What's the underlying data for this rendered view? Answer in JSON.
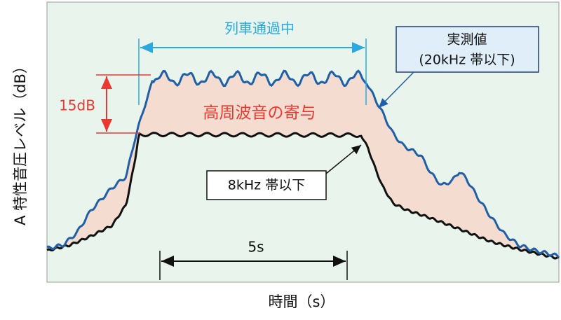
{
  "axes": {
    "y_label": "A 特性音圧レベル（dB）",
    "x_label": "時間（s）"
  },
  "annotations": {
    "passing": "列車通過中",
    "measured_line1": "実測値",
    "measured_line2": "(20kHz 帯以下)",
    "difference": "15dB",
    "contribution": "高周波音の寄与",
    "low_band": "8kHz 帯以下",
    "duration": "5s"
  }
}
